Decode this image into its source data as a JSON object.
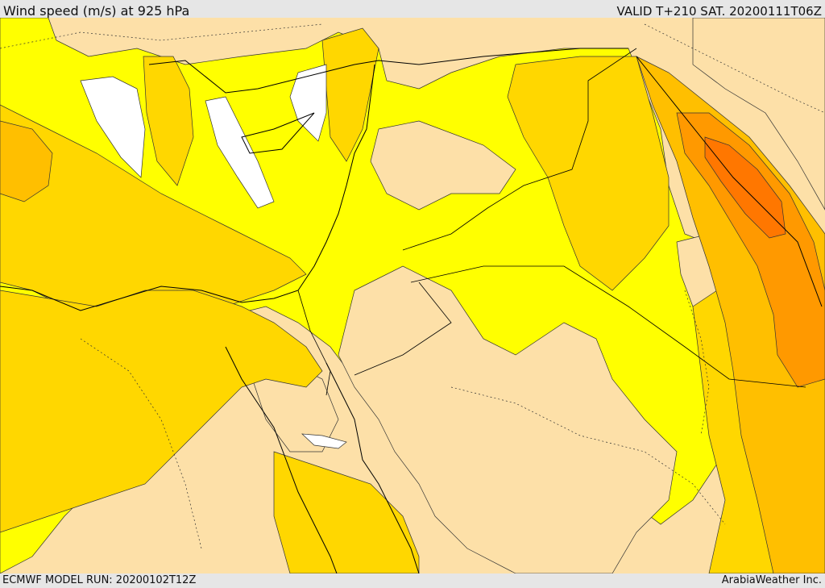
{
  "header": {
    "title": "Wind speed (m/s) at 925 hPa",
    "valid": "VALID T+210 SAT. 20200111T06Z"
  },
  "footer": {
    "model_run": "ECMWF MODEL RUN: 20200102T12Z",
    "credit": "ArabiaWeather Inc."
  },
  "colors": {
    "calm_white": "#ffffff",
    "light_tan": "#fde0a8",
    "yellow": "#ffff00",
    "gold": "#ffd700",
    "amber": "#ffbf00",
    "orange": "#ff9900",
    "dark_orange": "#ff7700",
    "contour_line": "#333333",
    "border_line": "#000000"
  }
}
